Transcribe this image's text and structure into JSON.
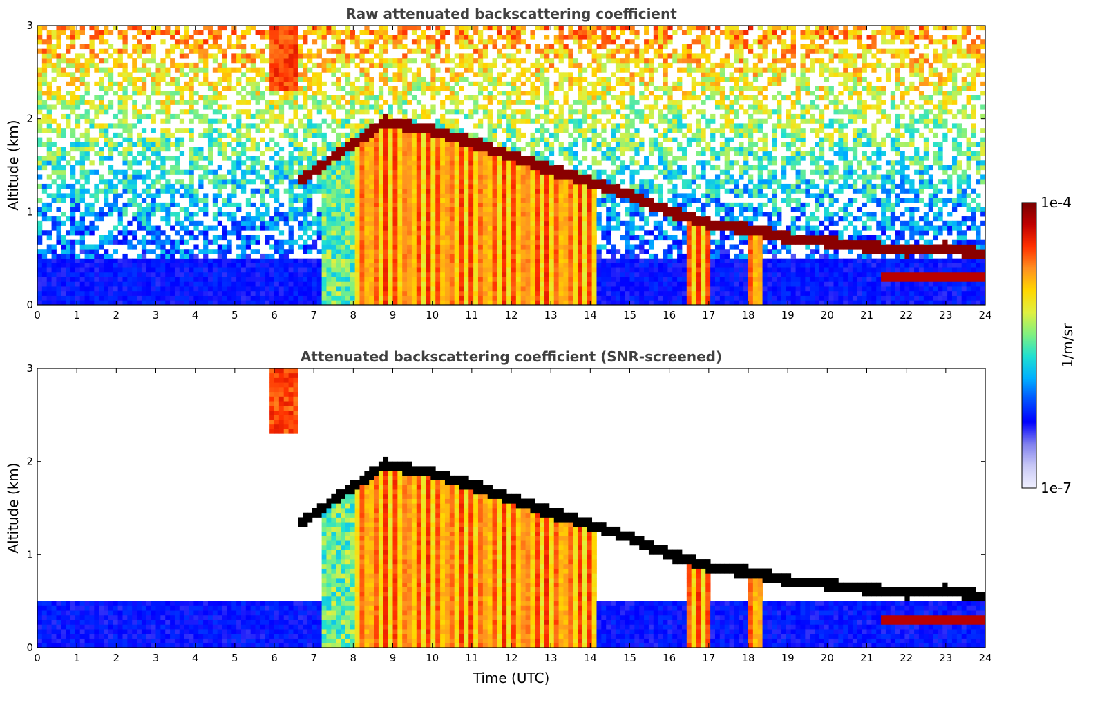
{
  "colors": {
    "colormap": [
      "#f0f0ff",
      "#c8c8f5",
      "#8080ee",
      "#0000ff",
      "#0050ff",
      "#00b0ff",
      "#20e0d0",
      "#80f080",
      "#e0f040",
      "#ffd700",
      "#ff9020",
      "#ff3000",
      "#c00000",
      "#780000"
    ],
    "ridge_raw": "#8a0000",
    "ridge_screened": "#000000",
    "title_text": "#404040"
  },
  "colorbar": {
    "max_label": "1e-4",
    "min_label": "1e-7",
    "unit_label": "1/m/sr",
    "scale": "log"
  },
  "chart_data": [
    {
      "type": "heatmap",
      "title": "Raw attenuated backscattering coefficient",
      "xlabel": "",
      "ylabel": "Altitude (km)",
      "xlim": [
        0,
        24
      ],
      "ylim": [
        0,
        3
      ],
      "xticks": [
        0,
        1,
        2,
        3,
        4,
        5,
        6,
        7,
        8,
        9,
        10,
        11,
        12,
        13,
        14,
        15,
        16,
        17,
        18,
        19,
        20,
        21,
        22,
        23,
        24
      ],
      "yticks": [
        0,
        1,
        2,
        3
      ],
      "screened": false,
      "cloud_layer_altitude_km": [
        {
          "time": 6.6,
          "alt": 1.32
        },
        {
          "time": 8.8,
          "alt": 1.97
        },
        {
          "time": 10.0,
          "alt": 1.88
        },
        {
          "time": 11.0,
          "alt": 1.75
        },
        {
          "time": 12.0,
          "alt": 1.6
        },
        {
          "time": 13.0,
          "alt": 1.45
        },
        {
          "time": 14.2,
          "alt": 1.3
        },
        {
          "time": 15.0,
          "alt": 1.18
        },
        {
          "time": 16.0,
          "alt": 1.0
        },
        {
          "time": 17.0,
          "alt": 0.87
        },
        {
          "time": 18.0,
          "alt": 0.82
        },
        {
          "time": 19.0,
          "alt": 0.72
        },
        {
          "time": 20.0,
          "alt": 0.68
        },
        {
          "time": 21.0,
          "alt": 0.63
        },
        {
          "time": 22.0,
          "alt": 0.58
        },
        {
          "time": 23.0,
          "alt": 0.62
        },
        {
          "time": 23.9,
          "alt": 0.55
        }
      ]
    },
    {
      "type": "heatmap",
      "title": "Attenuated backscattering coefficient (SNR-screened)",
      "xlabel": "Time (UTC)",
      "ylabel": "Altitude (km)",
      "xlim": [
        0,
        24
      ],
      "ylim": [
        0,
        3
      ],
      "xticks": [
        0,
        1,
        2,
        3,
        4,
        5,
        6,
        7,
        8,
        9,
        10,
        11,
        12,
        13,
        14,
        15,
        16,
        17,
        18,
        19,
        20,
        21,
        22,
        23,
        24
      ],
      "yticks": [
        0,
        1,
        2,
        3
      ],
      "screened": true,
      "cloud_layer_altitude_km": [
        {
          "time": 6.6,
          "alt": 1.32
        },
        {
          "time": 8.8,
          "alt": 1.97
        },
        {
          "time": 10.0,
          "alt": 1.88
        },
        {
          "time": 11.0,
          "alt": 1.75
        },
        {
          "time": 12.0,
          "alt": 1.6
        },
        {
          "time": 13.0,
          "alt": 1.45
        },
        {
          "time": 14.2,
          "alt": 1.3
        },
        {
          "time": 15.0,
          "alt": 1.18
        },
        {
          "time": 16.0,
          "alt": 1.0
        },
        {
          "time": 17.0,
          "alt": 0.87
        },
        {
          "time": 18.0,
          "alt": 0.82
        },
        {
          "time": 19.0,
          "alt": 0.72
        },
        {
          "time": 20.0,
          "alt": 0.68
        },
        {
          "time": 21.0,
          "alt": 0.63
        },
        {
          "time": 22.0,
          "alt": 0.58
        },
        {
          "time": 23.0,
          "alt": 0.62
        },
        {
          "time": 23.9,
          "alt": 0.55
        }
      ]
    }
  ]
}
